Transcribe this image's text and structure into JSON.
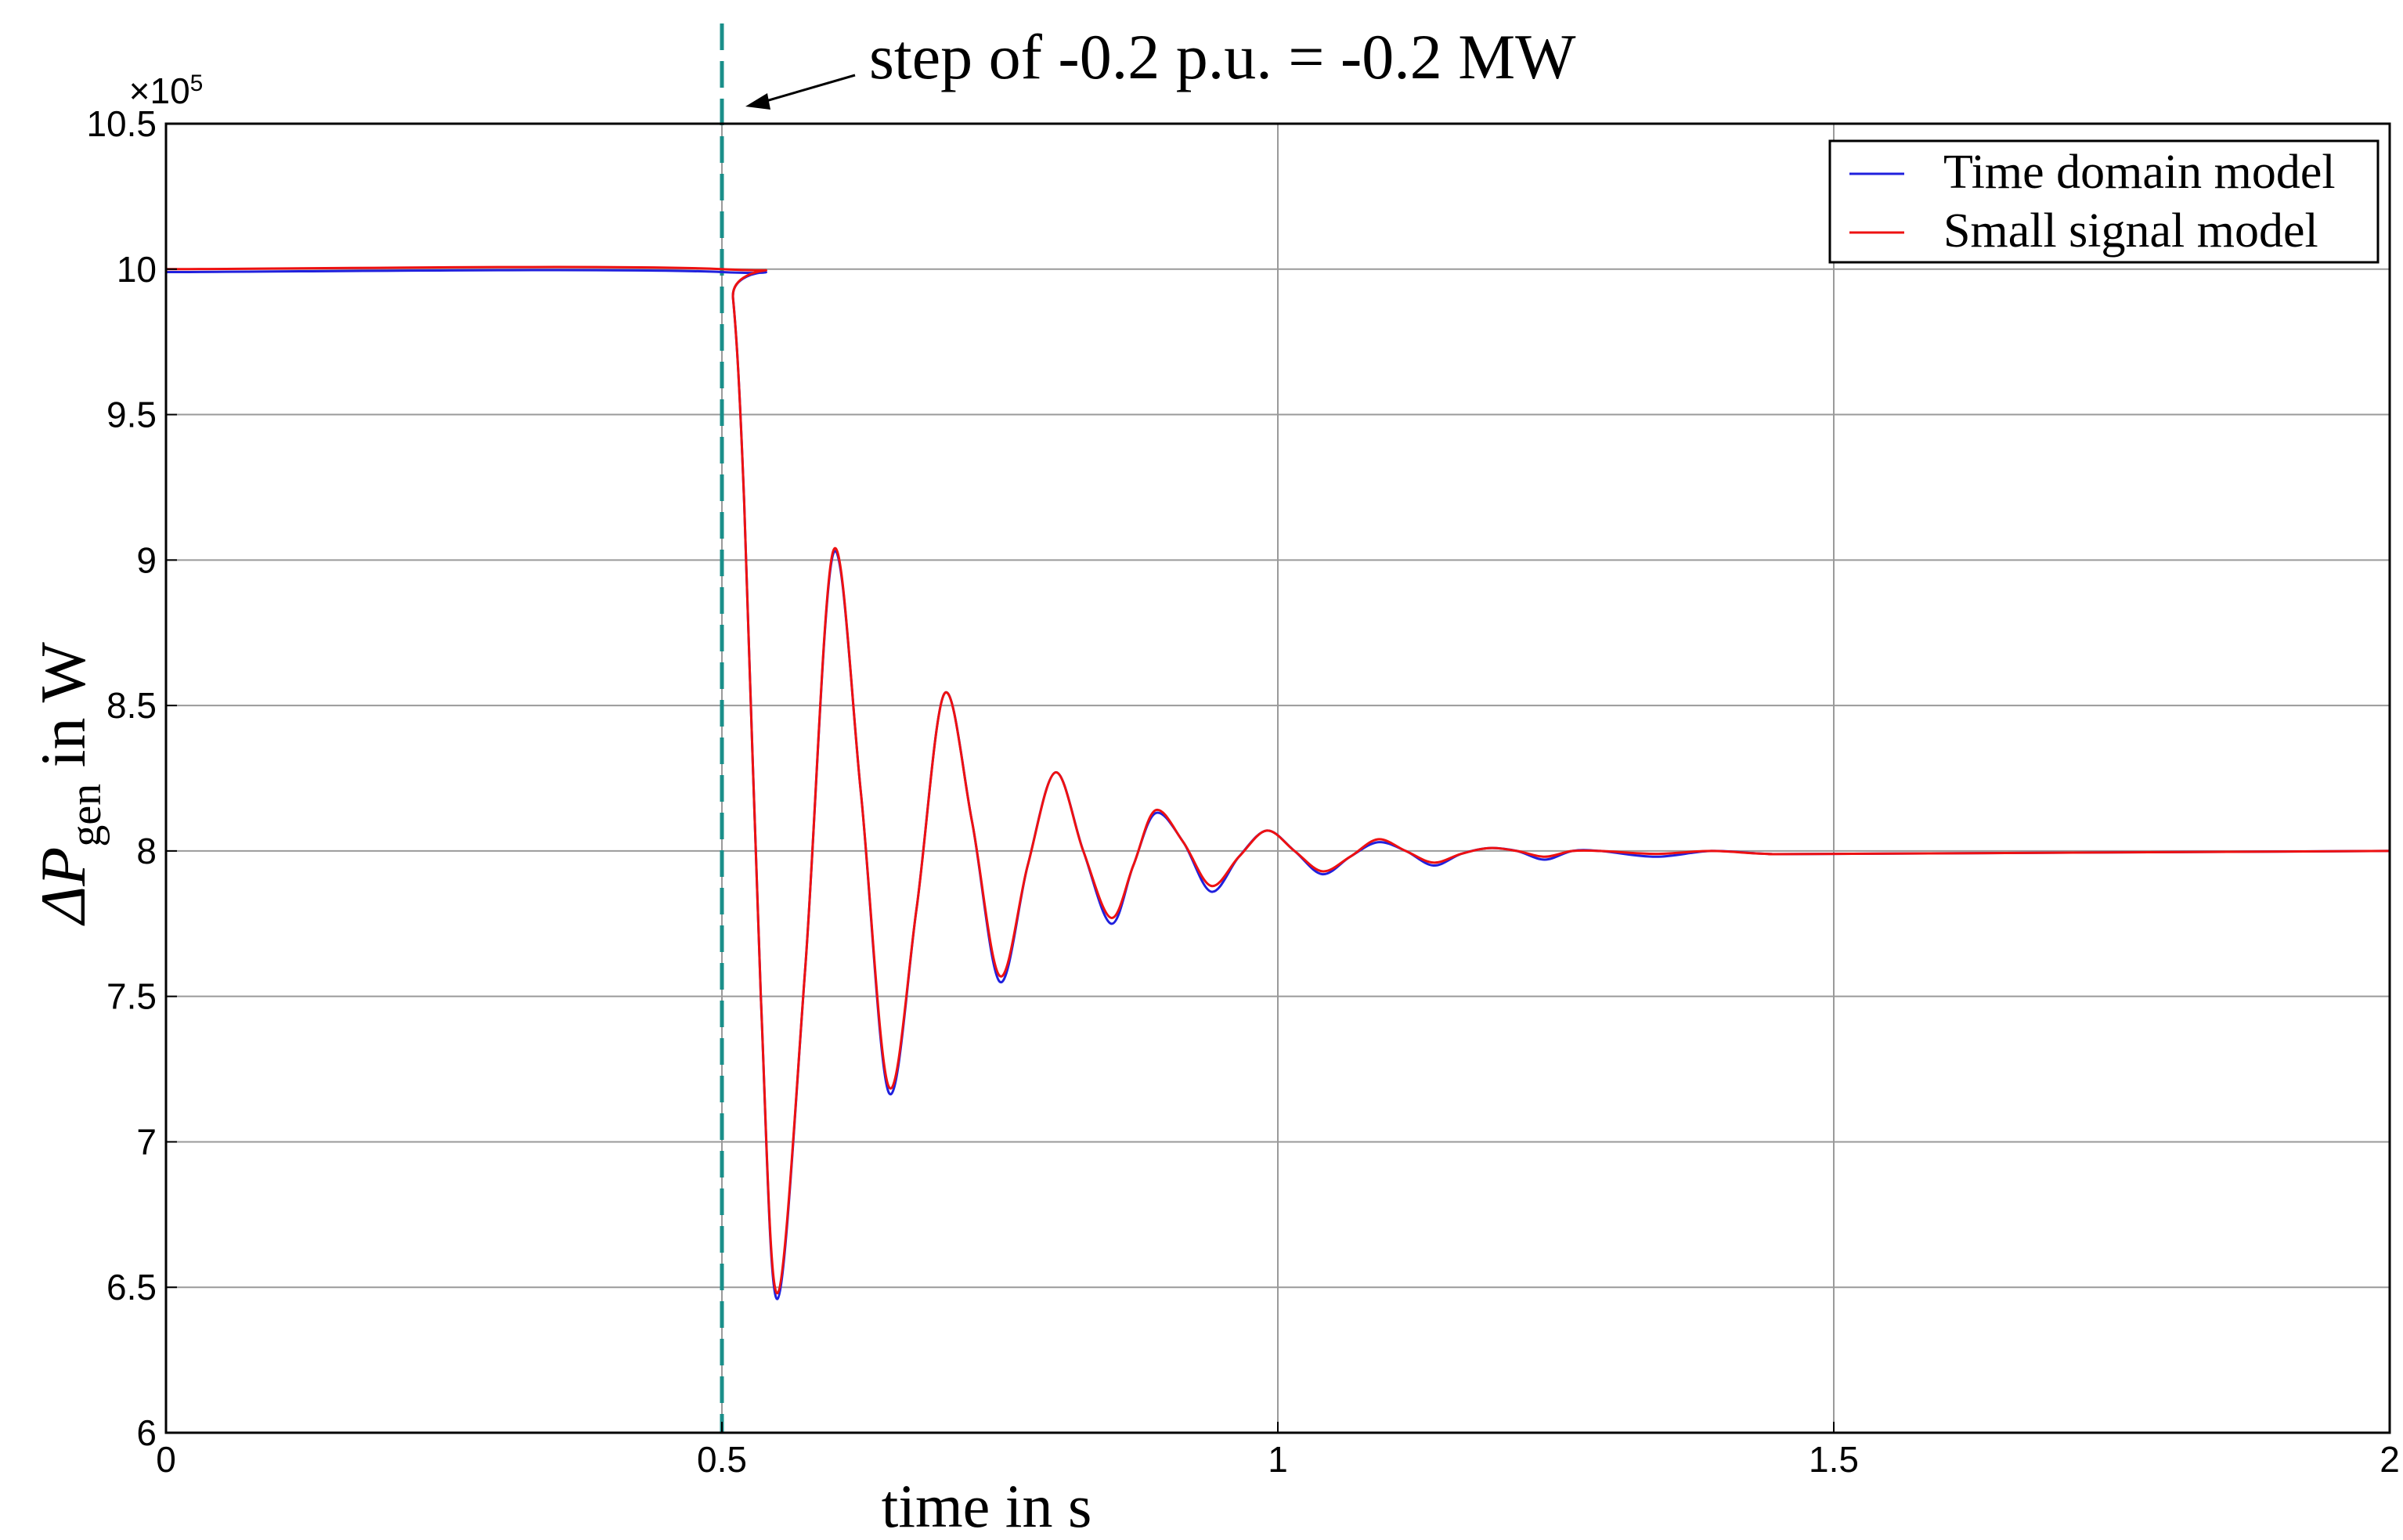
{
  "chart_data": {
    "type": "line",
    "annotation": "step of -0.2 p.u. = -0.2 MW",
    "xlabel": "time in s",
    "ylabel": {
      "symbol": "ΔP",
      "subscript": "gen",
      "suffix": " in W"
    },
    "y_exponent": {
      "base": "×10",
      "power": "5"
    },
    "xlim": [
      0,
      2
    ],
    "ylim": [
      6,
      10.5
    ],
    "xticks": [
      0,
      0.5,
      1,
      1.5,
      2
    ],
    "xtick_labels": [
      "0",
      "0.5",
      "1",
      "1.5",
      "2"
    ],
    "yticks": [
      6,
      6.5,
      7,
      7.5,
      8,
      8.5,
      9,
      9.5,
      10,
      10.5
    ],
    "ytick_labels": [
      "6",
      "6.5",
      "7",
      "7.5",
      "8",
      "8.5",
      "9",
      "9.5",
      "10",
      "10.5"
    ],
    "grid": true,
    "legend_position": "top-right",
    "step_time": 0.5,
    "step_line_color": "#1a8f8a",
    "series": [
      {
        "name": "Time domain model",
        "color": "#2020dd",
        "x": [
          0,
          0.5,
          0.51,
          0.52,
          0.535,
          0.55,
          0.575,
          0.6,
          0.625,
          0.65,
          0.675,
          0.7,
          0.725,
          0.75,
          0.775,
          0.8,
          0.825,
          0.85,
          0.87,
          0.89,
          0.915,
          0.94,
          0.965,
          0.99,
          1.015,
          1.04,
          1.065,
          1.09,
          1.115,
          1.14,
          1.165,
          1.19,
          1.215,
          1.24,
          1.265,
          1.29,
          1.34,
          1.39,
          1.44,
          1.5,
          2.0
        ],
        "y": [
          9.99,
          9.99,
          9.9,
          9.2,
          7.5,
          6.46,
          7.6,
          9.02,
          8.2,
          7.17,
          7.8,
          8.54,
          8.1,
          7.55,
          7.95,
          8.27,
          8.0,
          7.75,
          7.95,
          8.13,
          8.03,
          7.86,
          7.98,
          8.07,
          8.0,
          7.92,
          7.98,
          8.03,
          8.0,
          7.95,
          7.99,
          8.01,
          8.0,
          7.97,
          8.0,
          8.0,
          7.98,
          8.0,
          7.99,
          7.99,
          8.0
        ]
      },
      {
        "name": "Small signal model",
        "color": "#ee1111",
        "x": [
          0,
          0.5,
          0.51,
          0.52,
          0.535,
          0.55,
          0.575,
          0.6,
          0.625,
          0.65,
          0.675,
          0.7,
          0.725,
          0.75,
          0.775,
          0.8,
          0.825,
          0.85,
          0.87,
          0.89,
          0.915,
          0.94,
          0.965,
          0.99,
          1.015,
          1.04,
          1.065,
          1.09,
          1.115,
          1.14,
          1.165,
          1.19,
          1.215,
          1.24,
          1.265,
          1.29,
          1.34,
          1.39,
          1.44,
          1.5,
          2.0
        ],
        "y": [
          10.0,
          10.0,
          9.9,
          9.2,
          7.5,
          6.48,
          7.6,
          9.03,
          8.2,
          7.19,
          7.8,
          8.54,
          8.1,
          7.57,
          7.95,
          8.27,
          8.0,
          7.77,
          7.95,
          8.14,
          8.03,
          7.88,
          7.98,
          8.07,
          8.0,
          7.93,
          7.98,
          8.04,
          8.0,
          7.96,
          7.99,
          8.01,
          8.0,
          7.98,
          8.0,
          8.0,
          7.99,
          8.0,
          7.99,
          7.99,
          8.0
        ]
      }
    ]
  }
}
